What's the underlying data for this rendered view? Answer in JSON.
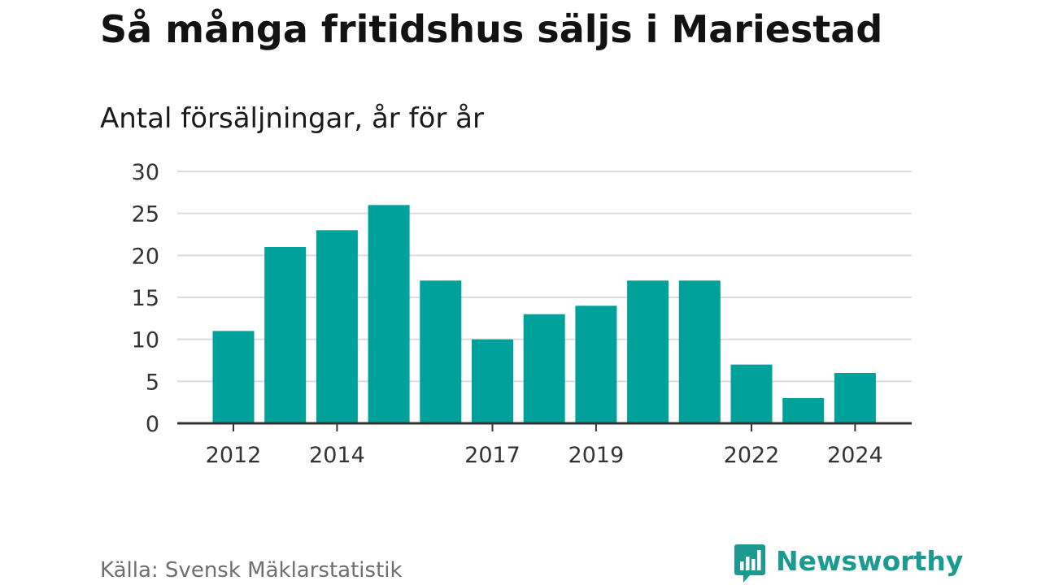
{
  "title": "Så många fritidshus säljs i Mariestad",
  "subtitle": "Antal försäljningar, år för år",
  "source": "Källa: Svensk Mäklarstatistik",
  "logo": {
    "text": "Newsworthy",
    "icon": "bar-chart-speech-bubble-icon"
  },
  "colors": {
    "bar": "#00a19a",
    "grid": "#dcdcdc",
    "axis": "#333333",
    "logo": "#1b9a92"
  },
  "chart_data": {
    "type": "bar",
    "title": "Så många fritidshus säljs i Mariestad",
    "subtitle": "Antal försäljningar, år för år",
    "xlabel": "",
    "ylabel": "",
    "categories": [
      2012,
      2013,
      2014,
      2015,
      2016,
      2017,
      2018,
      2019,
      2020,
      2021,
      2022,
      2023,
      2024
    ],
    "values": [
      11,
      21,
      23,
      26,
      17,
      10,
      13,
      14,
      17,
      17,
      7,
      3,
      6
    ],
    "ylim": [
      0,
      30
    ],
    "yticks": [
      0,
      5,
      10,
      15,
      20,
      25,
      30
    ],
    "xticks": [
      2012,
      2014,
      2017,
      2019,
      2022,
      2024
    ],
    "grid": true,
    "legend": "none"
  }
}
